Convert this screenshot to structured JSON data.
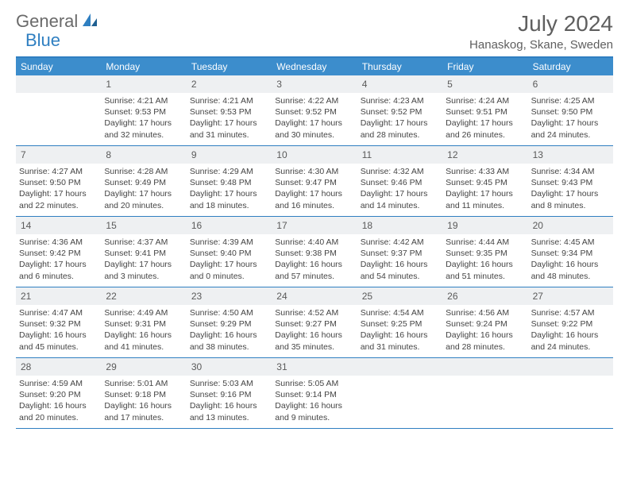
{
  "brand": {
    "part1": "General",
    "part2": "Blue"
  },
  "title": "July 2024",
  "location": "Hanaskog, Skane, Sweden",
  "colors": {
    "accent": "#3c8dcc",
    "accent_border": "#2f7fc1",
    "header_text": "#5f5f5f",
    "daynum_bg": "#eef0f2",
    "body_text": "#444444"
  },
  "dows": [
    "Sunday",
    "Monday",
    "Tuesday",
    "Wednesday",
    "Thursday",
    "Friday",
    "Saturday"
  ],
  "weeks": [
    [
      null,
      {
        "n": "1",
        "sr": "Sunrise: 4:21 AM",
        "ss": "Sunset: 9:53 PM",
        "d1": "Daylight: 17 hours",
        "d2": "and 32 minutes."
      },
      {
        "n": "2",
        "sr": "Sunrise: 4:21 AM",
        "ss": "Sunset: 9:53 PM",
        "d1": "Daylight: 17 hours",
        "d2": "and 31 minutes."
      },
      {
        "n": "3",
        "sr": "Sunrise: 4:22 AM",
        "ss": "Sunset: 9:52 PM",
        "d1": "Daylight: 17 hours",
        "d2": "and 30 minutes."
      },
      {
        "n": "4",
        "sr": "Sunrise: 4:23 AM",
        "ss": "Sunset: 9:52 PM",
        "d1": "Daylight: 17 hours",
        "d2": "and 28 minutes."
      },
      {
        "n": "5",
        "sr": "Sunrise: 4:24 AM",
        "ss": "Sunset: 9:51 PM",
        "d1": "Daylight: 17 hours",
        "d2": "and 26 minutes."
      },
      {
        "n": "6",
        "sr": "Sunrise: 4:25 AM",
        "ss": "Sunset: 9:50 PM",
        "d1": "Daylight: 17 hours",
        "d2": "and 24 minutes."
      }
    ],
    [
      {
        "n": "7",
        "sr": "Sunrise: 4:27 AM",
        "ss": "Sunset: 9:50 PM",
        "d1": "Daylight: 17 hours",
        "d2": "and 22 minutes."
      },
      {
        "n": "8",
        "sr": "Sunrise: 4:28 AM",
        "ss": "Sunset: 9:49 PM",
        "d1": "Daylight: 17 hours",
        "d2": "and 20 minutes."
      },
      {
        "n": "9",
        "sr": "Sunrise: 4:29 AM",
        "ss": "Sunset: 9:48 PM",
        "d1": "Daylight: 17 hours",
        "d2": "and 18 minutes."
      },
      {
        "n": "10",
        "sr": "Sunrise: 4:30 AM",
        "ss": "Sunset: 9:47 PM",
        "d1": "Daylight: 17 hours",
        "d2": "and 16 minutes."
      },
      {
        "n": "11",
        "sr": "Sunrise: 4:32 AM",
        "ss": "Sunset: 9:46 PM",
        "d1": "Daylight: 17 hours",
        "d2": "and 14 minutes."
      },
      {
        "n": "12",
        "sr": "Sunrise: 4:33 AM",
        "ss": "Sunset: 9:45 PM",
        "d1": "Daylight: 17 hours",
        "d2": "and 11 minutes."
      },
      {
        "n": "13",
        "sr": "Sunrise: 4:34 AM",
        "ss": "Sunset: 9:43 PM",
        "d1": "Daylight: 17 hours",
        "d2": "and 8 minutes."
      }
    ],
    [
      {
        "n": "14",
        "sr": "Sunrise: 4:36 AM",
        "ss": "Sunset: 9:42 PM",
        "d1": "Daylight: 17 hours",
        "d2": "and 6 minutes."
      },
      {
        "n": "15",
        "sr": "Sunrise: 4:37 AM",
        "ss": "Sunset: 9:41 PM",
        "d1": "Daylight: 17 hours",
        "d2": "and 3 minutes."
      },
      {
        "n": "16",
        "sr": "Sunrise: 4:39 AM",
        "ss": "Sunset: 9:40 PM",
        "d1": "Daylight: 17 hours",
        "d2": "and 0 minutes."
      },
      {
        "n": "17",
        "sr": "Sunrise: 4:40 AM",
        "ss": "Sunset: 9:38 PM",
        "d1": "Daylight: 16 hours",
        "d2": "and 57 minutes."
      },
      {
        "n": "18",
        "sr": "Sunrise: 4:42 AM",
        "ss": "Sunset: 9:37 PM",
        "d1": "Daylight: 16 hours",
        "d2": "and 54 minutes."
      },
      {
        "n": "19",
        "sr": "Sunrise: 4:44 AM",
        "ss": "Sunset: 9:35 PM",
        "d1": "Daylight: 16 hours",
        "d2": "and 51 minutes."
      },
      {
        "n": "20",
        "sr": "Sunrise: 4:45 AM",
        "ss": "Sunset: 9:34 PM",
        "d1": "Daylight: 16 hours",
        "d2": "and 48 minutes."
      }
    ],
    [
      {
        "n": "21",
        "sr": "Sunrise: 4:47 AM",
        "ss": "Sunset: 9:32 PM",
        "d1": "Daylight: 16 hours",
        "d2": "and 45 minutes."
      },
      {
        "n": "22",
        "sr": "Sunrise: 4:49 AM",
        "ss": "Sunset: 9:31 PM",
        "d1": "Daylight: 16 hours",
        "d2": "and 41 minutes."
      },
      {
        "n": "23",
        "sr": "Sunrise: 4:50 AM",
        "ss": "Sunset: 9:29 PM",
        "d1": "Daylight: 16 hours",
        "d2": "and 38 minutes."
      },
      {
        "n": "24",
        "sr": "Sunrise: 4:52 AM",
        "ss": "Sunset: 9:27 PM",
        "d1": "Daylight: 16 hours",
        "d2": "and 35 minutes."
      },
      {
        "n": "25",
        "sr": "Sunrise: 4:54 AM",
        "ss": "Sunset: 9:25 PM",
        "d1": "Daylight: 16 hours",
        "d2": "and 31 minutes."
      },
      {
        "n": "26",
        "sr": "Sunrise: 4:56 AM",
        "ss": "Sunset: 9:24 PM",
        "d1": "Daylight: 16 hours",
        "d2": "and 28 minutes."
      },
      {
        "n": "27",
        "sr": "Sunrise: 4:57 AM",
        "ss": "Sunset: 9:22 PM",
        "d1": "Daylight: 16 hours",
        "d2": "and 24 minutes."
      }
    ],
    [
      {
        "n": "28",
        "sr": "Sunrise: 4:59 AM",
        "ss": "Sunset: 9:20 PM",
        "d1": "Daylight: 16 hours",
        "d2": "and 20 minutes."
      },
      {
        "n": "29",
        "sr": "Sunrise: 5:01 AM",
        "ss": "Sunset: 9:18 PM",
        "d1": "Daylight: 16 hours",
        "d2": "and 17 minutes."
      },
      {
        "n": "30",
        "sr": "Sunrise: 5:03 AM",
        "ss": "Sunset: 9:16 PM",
        "d1": "Daylight: 16 hours",
        "d2": "and 13 minutes."
      },
      {
        "n": "31",
        "sr": "Sunrise: 5:05 AM",
        "ss": "Sunset: 9:14 PM",
        "d1": "Daylight: 16 hours",
        "d2": "and 9 minutes."
      },
      null,
      null,
      null
    ]
  ]
}
